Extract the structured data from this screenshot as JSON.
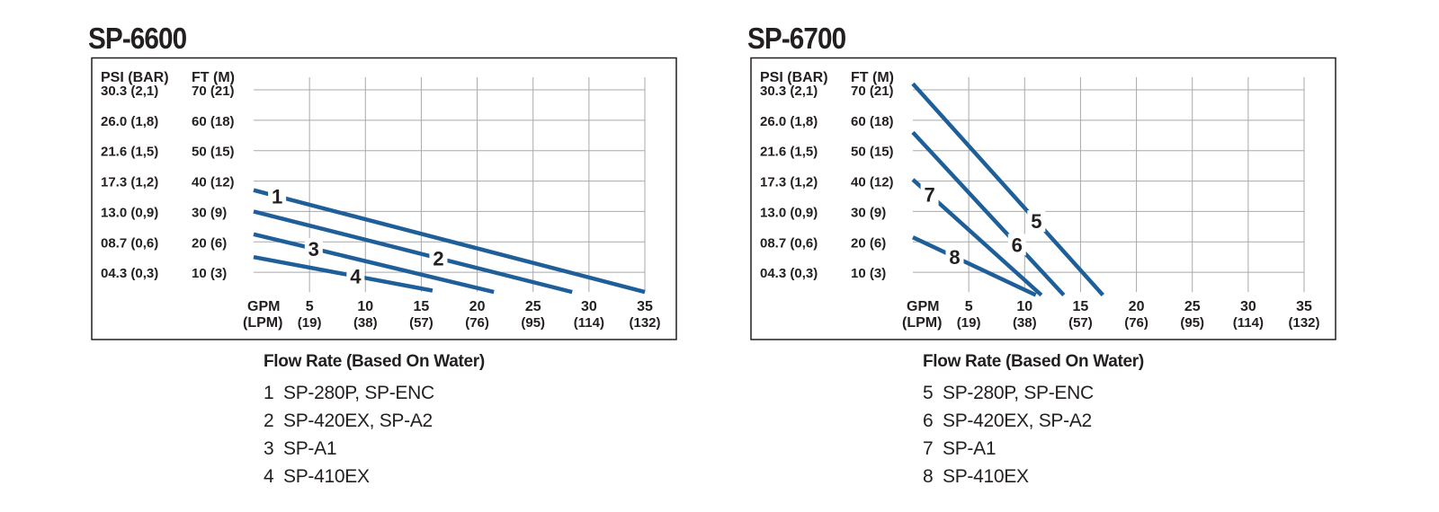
{
  "charts": [
    {
      "title": "SP-6600",
      "caption": "Flow Rate (Based On Water)",
      "legend": [
        {
          "num": "1",
          "text": "SP-280P, SP-ENC"
        },
        {
          "num": "2",
          "text": "SP-420EX, SP-A2"
        },
        {
          "num": "3",
          "text": "SP-A1"
        },
        {
          "num": "4",
          "text": "SP-410EX"
        }
      ]
    },
    {
      "title": "SP-6700",
      "caption": "Flow Rate (Based On Water)",
      "legend": [
        {
          "num": "5",
          "text": "SP-280P, SP-ENC"
        },
        {
          "num": "6",
          "text": "SP-420EX, SP-A2"
        },
        {
          "num": "7",
          "text": "SP-A1"
        },
        {
          "num": "8",
          "text": "SP-410EX"
        }
      ]
    }
  ],
  "chart_data": [
    {
      "type": "line",
      "title": "SP-6600",
      "xlabel": "GPM (LPM)",
      "ylabel": "PSI (BAR) / FT (M)",
      "y_header_psi": "PSI (BAR)",
      "y_header_ft": "FT (M)",
      "x_unit_gpm": "GPM",
      "x_unit_lpm": "(LPM)",
      "x_ticks": [
        5,
        10,
        15,
        20,
        25,
        30,
        35
      ],
      "x_tick_lpm": [
        "(19)",
        "(38)",
        "(57)",
        "(76)",
        "(95)",
        "(114)",
        "(132)"
      ],
      "y_ticks": [
        10,
        20,
        30,
        40,
        50,
        60,
        70
      ],
      "y_tick_psi": [
        "04.3 (0,3)",
        "08.7 (0,6)",
        "13.0 (0,9)",
        "17.3 (1,2)",
        "21.6 (1,5)",
        "26.0 (1,8)",
        "30.3 (2,1)"
      ],
      "y_tick_ft": [
        "10 (3)",
        "20 (6)",
        "30 (9)",
        "40 (12)",
        "50 (15)",
        "60 (18)",
        "70 (21)"
      ],
      "xlim": [
        0,
        35
      ],
      "ylim": [
        0,
        70
      ],
      "grid": true,
      "line_color": "#1f5f99",
      "series": [
        {
          "name": "1",
          "x": [
            0,
            35
          ],
          "y": [
            37,
            3.5
          ]
        },
        {
          "name": "2",
          "x": [
            0,
            28.5
          ],
          "y": [
            30,
            3.5
          ]
        },
        {
          "name": "3",
          "x": [
            0,
            21.5
          ],
          "y": [
            22.5,
            3.5
          ]
        },
        {
          "name": "4",
          "x": [
            0,
            16
          ],
          "y": [
            15,
            4
          ]
        }
      ]
    },
    {
      "type": "line",
      "title": "SP-6700",
      "xlabel": "GPM (LPM)",
      "ylabel": "PSI (BAR) / FT (M)",
      "y_header_psi": "PSI (BAR)",
      "y_header_ft": "FT (M)",
      "x_unit_gpm": "GPM",
      "x_unit_lpm": "(LPM)",
      "x_ticks": [
        5,
        10,
        15,
        20,
        25,
        30,
        35
      ],
      "x_tick_lpm": [
        "(19)",
        "(38)",
        "(57)",
        "(76)",
        "(95)",
        "(114)",
        "(132)"
      ],
      "y_ticks": [
        10,
        20,
        30,
        40,
        50,
        60,
        70
      ],
      "y_tick_psi": [
        "04.3 (0,3)",
        "08.7 (0,6)",
        "13.0 (0,9)",
        "17.3 (1,2)",
        "21.6 (1,5)",
        "26.0 (1,8)",
        "30.3 (2,1)"
      ],
      "y_tick_ft": [
        "10 (3)",
        "20 (6)",
        "30 (9)",
        "40 (12)",
        "50 (15)",
        "60 (18)",
        "70 (21)"
      ],
      "xlim": [
        0,
        35
      ],
      "ylim": [
        0,
        70
      ],
      "grid": true,
      "line_color": "#1f5f99",
      "series": [
        {
          "name": "5",
          "x": [
            0,
            17
          ],
          "y": [
            72,
            2.5
          ]
        },
        {
          "name": "6",
          "x": [
            0,
            13.5
          ],
          "y": [
            56,
            2.5
          ]
        },
        {
          "name": "7",
          "x": [
            0,
            11.5
          ],
          "y": [
            40.5,
            2.5
          ]
        },
        {
          "name": "8",
          "x": [
            0,
            11
          ],
          "y": [
            21.5,
            2.5
          ]
        }
      ]
    }
  ]
}
